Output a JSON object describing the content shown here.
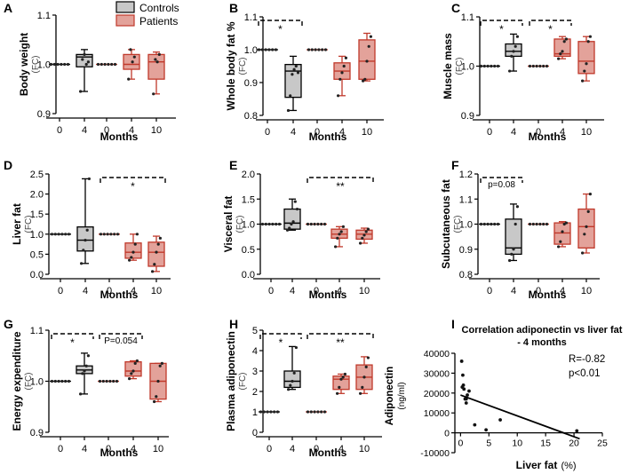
{
  "colors": {
    "control": "#000000",
    "patient": "#c0392b",
    "control_fill": "#c8c8c8",
    "patient_fill": "#e3a29a",
    "axis": "#000000"
  },
  "legend": {
    "controls": "Controls",
    "patients": "Patients"
  },
  "chart_data": [
    {
      "letter": "A",
      "type": "boxplot",
      "ylabel": "Body weight",
      "yunit": "(FC)",
      "xlabel": "Months",
      "ylim": [
        0.9,
        1.1
      ],
      "yticks": [
        0.9,
        1.0,
        1.1
      ],
      "ytick_labels": [
        "0.9",
        "1.0",
        "1.1"
      ],
      "categories": [
        "0",
        "4",
        "0",
        "4",
        "10"
      ],
      "boxes": [
        {
          "group": "control",
          "q": [
            1.0,
            1.0,
            1.0,
            1.0,
            1.0
          ],
          "points": [
            1.0,
            1.0,
            1.0,
            1.0,
            1.0,
            1.0
          ]
        },
        {
          "group": "control",
          "q": [
            0.945,
            0.995,
            1.015,
            1.02,
            1.03
          ],
          "points": [
            0.945,
            1.01,
            1.02,
            1.0,
            1.005
          ]
        },
        {
          "group": "patient",
          "q": [
            1.0,
            1.0,
            1.0,
            1.0,
            1.0
          ],
          "points": [
            1.0,
            1.0,
            1.0,
            1.0,
            1.0,
            1.0
          ]
        },
        {
          "group": "patient",
          "q": [
            0.97,
            0.99,
            1.0,
            1.02,
            1.03
          ],
          "points": [
            0.97,
            1.03,
            1.005,
            1.015
          ]
        },
        {
          "group": "patient",
          "q": [
            0.94,
            0.97,
            1.005,
            1.02,
            1.025
          ],
          "points": [
            0.94,
            1.01,
            1.005,
            1.02
          ]
        }
      ],
      "sig": []
    },
    {
      "letter": "B",
      "type": "boxplot",
      "ylabel": "Whole body fat %",
      "yunit": "(FC)",
      "xlabel": "Months",
      "ylim": [
        0.8,
        1.1
      ],
      "yticks": [
        0.8,
        0.9,
        1.0,
        1.1
      ],
      "ytick_labels": [
        "0.8",
        "0.9",
        "1.0",
        "1.1"
      ],
      "categories": [
        "0",
        "4",
        "0",
        "4",
        "10"
      ],
      "boxes": [
        {
          "group": "control",
          "q": [
            1.0,
            1.0,
            1.0,
            1.0,
            1.0
          ],
          "points": [
            1.0,
            1.0,
            1.0,
            1.0,
            1.0,
            1.0
          ]
        },
        {
          "group": "control",
          "q": [
            0.815,
            0.855,
            0.935,
            0.955,
            0.98
          ],
          "points": [
            0.815,
            0.86,
            0.925,
            0.94,
            0.95,
            0.93
          ]
        },
        {
          "group": "patient",
          "q": [
            1.0,
            1.0,
            1.0,
            1.0,
            1.0
          ],
          "points": [
            1.0,
            1.0,
            1.0,
            1.0,
            1.0,
            1.0
          ]
        },
        {
          "group": "patient",
          "q": [
            0.86,
            0.91,
            0.935,
            0.96,
            0.98
          ],
          "points": [
            0.86,
            0.91,
            0.93,
            0.95,
            0.975
          ]
        },
        {
          "group": "patient",
          "q": [
            0.905,
            0.91,
            0.965,
            1.03,
            1.05
          ],
          "points": [
            0.905,
            0.91,
            0.965,
            1.01,
            1.04
          ]
        }
      ],
      "sig": [
        {
          "from": 0,
          "to": 1,
          "label": "*"
        }
      ]
    },
    {
      "letter": "C",
      "type": "boxplot",
      "ylabel": "Muscle mass",
      "yunit": "(FC)",
      "xlabel": "Months",
      "ylim": [
        0.9,
        1.1
      ],
      "yticks": [
        0.9,
        1.0,
        1.1
      ],
      "ytick_labels": [
        "0.9",
        "1.0",
        "1.1"
      ],
      "categories": [
        "0",
        "4",
        "0",
        "4",
        "10"
      ],
      "boxes": [
        {
          "group": "control",
          "q": [
            1.0,
            1.0,
            1.0,
            1.0,
            1.0
          ],
          "points": [
            1.0,
            1.0,
            1.0,
            1.0,
            1.0,
            1.0
          ]
        },
        {
          "group": "control",
          "q": [
            0.99,
            1.02,
            1.03,
            1.045,
            1.065
          ],
          "points": [
            0.99,
            1.02,
            1.03,
            1.04,
            1.06
          ]
        },
        {
          "group": "patient",
          "q": [
            1.0,
            1.0,
            1.0,
            1.0,
            1.0
          ],
          "points": [
            1.0,
            1.0,
            1.0,
            1.0,
            1.0,
            1.0
          ]
        },
        {
          "group": "patient",
          "q": [
            1.015,
            1.02,
            1.025,
            1.055,
            1.06
          ],
          "points": [
            1.015,
            1.025,
            1.03,
            1.05,
            1.055
          ]
        },
        {
          "group": "patient",
          "q": [
            0.97,
            0.985,
            1.01,
            1.05,
            1.06
          ],
          "points": [
            0.97,
            0.99,
            1.005,
            1.05,
            1.06
          ]
        }
      ],
      "sig": [
        {
          "from": 0,
          "to": 1,
          "label": "*"
        },
        {
          "from": 2,
          "to": 3,
          "label": "*"
        }
      ]
    },
    {
      "letter": "D",
      "type": "boxplot",
      "ylabel": "Liver fat",
      "yunit": "(FC)",
      "xlabel": "Months",
      "ylim": [
        0.0,
        2.5
      ],
      "yticks": [
        0.0,
        0.5,
        1.0,
        1.5,
        2.0,
        2.5
      ],
      "ytick_labels": [
        "0.0",
        "0.5",
        "1.0",
        "1.5",
        "2.0",
        "2.5"
      ],
      "categories": [
        "0",
        "4",
        "0",
        "4",
        "10"
      ],
      "boxes": [
        {
          "group": "control",
          "q": [
            1.0,
            1.0,
            1.0,
            1.0,
            1.0
          ],
          "points": [
            1.0,
            1.0,
            1.0,
            1.0,
            1.0,
            1.0
          ]
        },
        {
          "group": "control",
          "q": [
            0.27,
            0.58,
            0.85,
            1.18,
            2.38
          ],
          "points": [
            0.27,
            0.6,
            0.85,
            1.1,
            2.38
          ]
        },
        {
          "group": "patient",
          "q": [
            1.0,
            1.0,
            1.0,
            1.0,
            1.0
          ],
          "points": [
            1.0,
            1.0,
            1.0,
            1.0,
            1.0,
            1.0
          ]
        },
        {
          "group": "patient",
          "q": [
            0.35,
            0.4,
            0.55,
            0.78,
            1.0
          ],
          "points": [
            0.35,
            0.42,
            0.55,
            0.75,
            1.0
          ]
        },
        {
          "group": "patient",
          "q": [
            0.07,
            0.2,
            0.55,
            0.8,
            0.95
          ],
          "points": [
            0.07,
            0.25,
            0.55,
            0.75,
            0.9
          ]
        }
      ],
      "sig": [
        {
          "from": 2,
          "to": 4,
          "label": "*"
        }
      ]
    },
    {
      "letter": "E",
      "type": "boxplot",
      "ylabel": "Visceral fat",
      "yunit": "(FC)",
      "xlabel": "Months",
      "ylim": [
        0.0,
        2.0
      ],
      "yticks": [
        0.0,
        0.5,
        1.0,
        1.5,
        2.0
      ],
      "ytick_labels": [
        "0.0",
        "0.5",
        "1.0",
        "1.5",
        "2.0"
      ],
      "categories": [
        "0",
        "4",
        "0",
        "4",
        "10"
      ],
      "boxes": [
        {
          "group": "control",
          "q": [
            1.0,
            1.0,
            1.0,
            1.0,
            1.0
          ],
          "points": [
            1.0,
            1.0,
            1.0,
            1.0,
            1.0,
            1.0
          ]
        },
        {
          "group": "control",
          "q": [
            0.88,
            0.9,
            1.02,
            1.3,
            1.5
          ],
          "points": [
            0.88,
            0.92,
            1.0,
            1.05,
            1.45,
            1.3
          ]
        },
        {
          "group": "patient",
          "q": [
            1.0,
            1.0,
            1.0,
            1.0,
            1.0
          ],
          "points": [
            1.0,
            1.0,
            1.0,
            1.0,
            1.0,
            1.0
          ]
        },
        {
          "group": "patient",
          "q": [
            0.55,
            0.72,
            0.8,
            0.9,
            0.95
          ],
          "points": [
            0.55,
            0.72,
            0.8,
            0.85,
            0.95
          ]
        },
        {
          "group": "patient",
          "q": [
            0.62,
            0.7,
            0.8,
            0.88,
            0.92
          ],
          "points": [
            0.62,
            0.72,
            0.78,
            0.85,
            0.9
          ]
        }
      ],
      "sig": [
        {
          "from": 2,
          "to": 4,
          "label": "**"
        }
      ]
    },
    {
      "letter": "F",
      "type": "boxplot",
      "ylabel": "Subcutaneous fat",
      "yunit": "(FC)",
      "xlabel": "Months",
      "ylim": [
        0.8,
        1.2
      ],
      "yticks": [
        0.8,
        0.9,
        1.0,
        1.1,
        1.2
      ],
      "ytick_labels": [
        "0.8",
        "0.9",
        "1.0",
        "1.1",
        "1.2"
      ],
      "categories": [
        "0",
        "4",
        "0",
        "4",
        "10"
      ],
      "boxes": [
        {
          "group": "control",
          "q": [
            1.0,
            1.0,
            1.0,
            1.0,
            1.0
          ],
          "points": [
            1.0,
            1.0,
            1.0,
            1.0,
            1.0,
            1.0
          ]
        },
        {
          "group": "control",
          "q": [
            0.855,
            0.88,
            0.905,
            1.02,
            1.08
          ],
          "points": [
            0.855,
            0.88,
            0.9,
            1.0,
            1.07
          ]
        },
        {
          "group": "patient",
          "q": [
            1.0,
            1.0,
            1.0,
            1.0,
            1.0
          ],
          "points": [
            1.0,
            1.0,
            1.0,
            1.0,
            1.0,
            1.0
          ]
        },
        {
          "group": "patient",
          "q": [
            0.91,
            0.92,
            0.965,
            1.005,
            1.01
          ],
          "points": [
            0.91,
            0.93,
            0.97,
            1.0,
            1.005
          ]
        },
        {
          "group": "patient",
          "q": [
            0.885,
            0.905,
            0.99,
            1.06,
            1.12
          ],
          "points": [
            0.885,
            0.96,
            0.99,
            1.05,
            1.12
          ]
        }
      ],
      "sig": [
        {
          "from": 0,
          "to": 1,
          "label": "p=0.08"
        }
      ]
    },
    {
      "letter": "G",
      "type": "boxplot",
      "ylabel": "Energy expenditure",
      "yunit": "(FC)",
      "xlabel": "Months",
      "ylim": [
        0.9,
        1.1
      ],
      "yticks": [
        0.9,
        1.0,
        1.1
      ],
      "ytick_labels": [
        "0.9",
        "1.0",
        "1.1"
      ],
      "categories": [
        "0",
        "4",
        "0",
        "4",
        "10"
      ],
      "boxes": [
        {
          "group": "control",
          "q": [
            1.0,
            1.0,
            1.0,
            1.0,
            1.0
          ],
          "points": [
            1.0,
            1.0,
            1.0,
            1.0,
            1.0,
            1.0
          ]
        },
        {
          "group": "control",
          "q": [
            0.975,
            1.015,
            1.022,
            1.03,
            1.055
          ],
          "points": [
            0.975,
            1.015,
            1.02,
            1.03,
            1.05
          ]
        },
        {
          "group": "patient",
          "q": [
            1.0,
            1.0,
            1.0,
            1.0,
            1.0
          ],
          "points": [
            1.0,
            1.0,
            1.0,
            1.0,
            1.0,
            1.0
          ]
        },
        {
          "group": "patient",
          "q": [
            1.005,
            1.01,
            1.02,
            1.038,
            1.04
          ],
          "points": [
            1.005,
            1.015,
            1.02,
            1.035,
            1.04
          ]
        },
        {
          "group": "patient",
          "q": [
            0.96,
            0.965,
            1.0,
            1.035,
            1.035
          ],
          "points": [
            0.96,
            0.97,
            1.0,
            1.03,
            1.035
          ]
        }
      ],
      "sig": [
        {
          "from": 0,
          "to": 1,
          "label": "*"
        },
        {
          "from": 2,
          "to": 3,
          "label": "P=0.054"
        }
      ]
    },
    {
      "letter": "H",
      "type": "boxplot",
      "ylabel": "Plasma adiponectin",
      "yunit": "(FC)",
      "xlabel": "Months",
      "ylim": [
        0,
        5
      ],
      "yticks": [
        0,
        1,
        2,
        3,
        4,
        5
      ],
      "ytick_labels": [
        "0",
        "1",
        "2",
        "3",
        "4",
        "5"
      ],
      "categories": [
        "0",
        "4",
        "0",
        "4",
        "10"
      ],
      "boxes": [
        {
          "group": "control",
          "q": [
            1.0,
            1.0,
            1.0,
            1.0,
            1.0
          ],
          "points": [
            1.0,
            1.0,
            1.0,
            1.0,
            1.0,
            1.0
          ]
        },
        {
          "group": "control",
          "q": [
            2.1,
            2.2,
            2.5,
            3.0,
            4.2
          ],
          "points": [
            2.1,
            2.3,
            2.5,
            2.9,
            4.15
          ]
        },
        {
          "group": "patient",
          "q": [
            1.0,
            1.0,
            1.0,
            1.0,
            1.0
          ],
          "points": [
            1.0,
            1.0,
            1.0,
            1.0,
            1.0,
            1.0
          ]
        },
        {
          "group": "patient",
          "q": [
            1.9,
            2.1,
            2.6,
            2.75,
            2.85
          ],
          "points": [
            1.9,
            2.2,
            2.6,
            2.7,
            2.85
          ]
        },
        {
          "group": "patient",
          "q": [
            1.9,
            2.1,
            2.7,
            3.3,
            3.7
          ],
          "points": [
            1.9,
            2.2,
            2.7,
            3.2,
            3.65
          ]
        }
      ],
      "sig": [
        {
          "from": 0,
          "to": 1,
          "label": "*"
        },
        {
          "from": 2,
          "to": 4,
          "label": "**"
        }
      ]
    },
    {
      "letter": "I",
      "type": "scatter",
      "title": "Correlation adiponectin vs liver fat - 4 months",
      "title_lines": [
        "Correlation adiponectin vs liver fat",
        "- 4 months"
      ],
      "ylabel": "Adiponectin",
      "yunit": "(ng/ml)",
      "xlabel": "Liver fat",
      "xunit": "(%)",
      "xlim": [
        -1,
        25
      ],
      "ylim": [
        -10000,
        40000
      ],
      "xticks": [
        0,
        5,
        10,
        15,
        20,
        25
      ],
      "yticks": [
        -10000,
        0,
        10000,
        20000,
        30000,
        40000
      ],
      "ytick_labels": [
        "-10000",
        "0",
        "10000",
        "20000",
        "30000",
        "40000"
      ],
      "xtick_labels": [
        "0",
        "5",
        "10",
        "15",
        "20",
        "25"
      ],
      "x": [
        0.2,
        0.4,
        0.6,
        0.8,
        1.0,
        1.2,
        1.5,
        0.5,
        2.5,
        4.5,
        7,
        20.5,
        1.0,
        0.3
      ],
      "y": [
        36000,
        29000,
        22000,
        17000,
        15000,
        19000,
        21000,
        24000,
        4000,
        1500,
        6500,
        1000,
        17000,
        23000
      ],
      "fit": {
        "x": [
          0,
          21
        ],
        "y": [
          19000,
          -3000
        ]
      },
      "stats": [
        "R=-0.82",
        "p<0.01"
      ]
    }
  ]
}
